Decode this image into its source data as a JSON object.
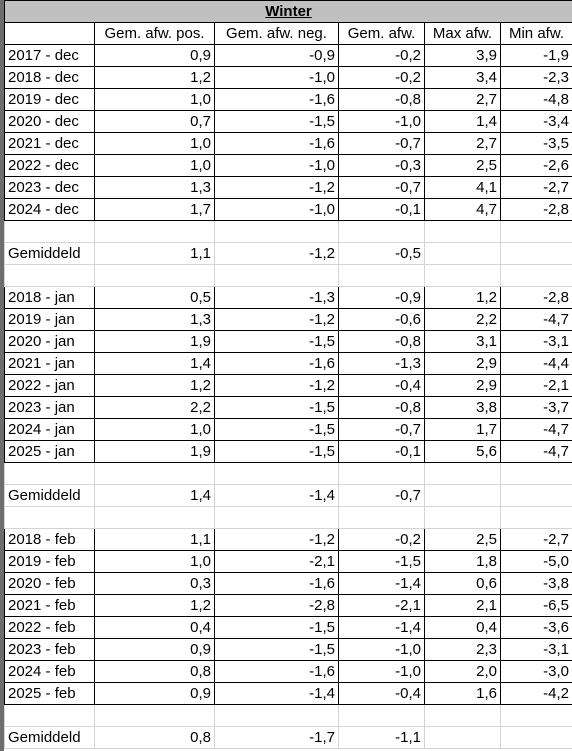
{
  "title": "Winter",
  "headers": [
    "Gem. afw. pos.",
    "Gem. afw. neg.",
    "Gem. afw.",
    "Max afw.",
    "Min afw."
  ],
  "sections": [
    {
      "rows": [
        [
          "2017 - dec",
          "0,9",
          "-0,9",
          "-0,2",
          "3,9",
          "-1,9"
        ],
        [
          "2018 - dec",
          "1,2",
          "-1,0",
          "-0,2",
          "3,4",
          "-2,3"
        ],
        [
          "2019 - dec",
          "1,0",
          "-1,6",
          "-0,8",
          "2,7",
          "-4,8"
        ],
        [
          "2020 - dec",
          "0,7",
          "-1,5",
          "-1,0",
          "1,4",
          "-3,4"
        ],
        [
          "2021 - dec",
          "1,0",
          "-1,6",
          "-0,7",
          "2,7",
          "-3,5"
        ],
        [
          "2022 - dec",
          "1,0",
          "-1,0",
          "-0,3",
          "2,5",
          "-2,6"
        ],
        [
          "2023 - dec",
          "1,3",
          "-1,2",
          "-0,7",
          "4,1",
          "-2,7"
        ],
        [
          "2024 - dec",
          "1,7",
          "-1,0",
          "-0,1",
          "4,7",
          "-2,8"
        ]
      ],
      "average": [
        "Gemiddeld",
        "1,1",
        "-1,2",
        "-0,5"
      ]
    },
    {
      "rows": [
        [
          "2018 - jan",
          "0,5",
          "-1,3",
          "-0,9",
          "1,2",
          "-2,8"
        ],
        [
          "2019 - jan",
          "1,3",
          "-1,2",
          "-0,6",
          "2,2",
          "-4,7"
        ],
        [
          "2020 - jan",
          "1,9",
          "-1,5",
          "-0,8",
          "3,1",
          "-3,1"
        ],
        [
          "2021 - jan",
          "1,4",
          "-1,6",
          "-1,3",
          "2,9",
          "-4,4"
        ],
        [
          "2022 - jan",
          "1,2",
          "-1,2",
          "-0,4",
          "2,9",
          "-2,1"
        ],
        [
          "2023 - jan",
          "2,2",
          "-1,5",
          "-0,8",
          "3,8",
          "-3,7"
        ],
        [
          "2024 - jan",
          "1,0",
          "-1,5",
          "-0,7",
          "1,7",
          "-4,7"
        ],
        [
          "2025 - jan",
          "1,9",
          "-1,5",
          "-0,1",
          "5,6",
          "-4,7"
        ]
      ],
      "average": [
        "Gemiddeld",
        "1,4",
        "-1,4",
        "-0,7"
      ]
    },
    {
      "rows": [
        [
          "2018 - feb",
          "1,1",
          "-1,2",
          "-0,2",
          "2,5",
          "-2,7"
        ],
        [
          "2019 - feb",
          "1,0",
          "-2,1",
          "-1,5",
          "1,8",
          "-5,0"
        ],
        [
          "2020 - feb",
          "0,3",
          "-1,6",
          "-1,4",
          "0,6",
          "-3,8"
        ],
        [
          "2021 - feb",
          "1,2",
          "-2,8",
          "-2,1",
          "2,1",
          "-6,5"
        ],
        [
          "2022 - feb",
          "0,4",
          "-1,5",
          "-1,4",
          "0,4",
          "-3,6"
        ],
        [
          "2023 - feb",
          "0,9",
          "-1,5",
          "-1,0",
          "2,3",
          "-3,1"
        ],
        [
          "2024 - feb",
          "0,8",
          "-1,6",
          "-1,0",
          "2,0",
          "-3,0"
        ],
        [
          "2025 - feb",
          "0,9",
          "-1,4",
          "-0,4",
          "1,6",
          "-4,2"
        ]
      ],
      "average": [
        "Gemiddeld",
        "0,8",
        "-1,7",
        "-1,1"
      ]
    }
  ]
}
